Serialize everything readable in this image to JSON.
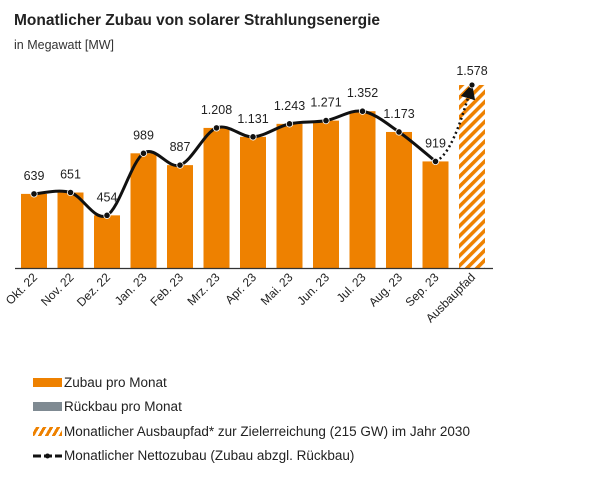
{
  "title": "Monatlicher Zubau von solarer Strahlungsenergie",
  "subtitle": "in Megawatt [MW]",
  "colors": {
    "zubau": "#EE8100",
    "rueckbau": "#7F8A92",
    "line": "#111111"
  },
  "chart_data": {
    "type": "bar",
    "title": "Monatlicher Zubau von solarer Strahlungsenergie",
    "ylabel": "in Megawatt [MW]",
    "categories": [
      "Okt. 22",
      "Nov. 22",
      "Dez. 22",
      "Jan. 23",
      "Feb. 23",
      "Mrz. 23",
      "Apr. 23",
      "Mai. 23",
      "Jun. 23",
      "Jul. 23",
      "Aug. 23",
      "Sep. 23",
      "Ausbaupfad"
    ],
    "series": [
      {
        "name": "Zubau pro Monat",
        "values": [
          639,
          651,
          454,
          989,
          887,
          1208,
          1131,
          1243,
          1271,
          1352,
          1173,
          919,
          null
        ]
      },
      {
        "name": "Monatlicher Ausbaupfad* zur Zielerreichung (215 GW) im Jahr 2030",
        "values": [
          null,
          null,
          null,
          null,
          null,
          null,
          null,
          null,
          null,
          null,
          null,
          null,
          1578
        ]
      },
      {
        "name": "Monatlicher Nettozubau (Zubau abzgl. Rückbau)",
        "type": "line",
        "values": [
          639,
          651,
          454,
          989,
          887,
          1208,
          1131,
          1243,
          1271,
          1352,
          1173,
          919,
          1578
        ]
      }
    ],
    "data_labels": [
      "639",
      "651",
      "454",
      "989",
      "887",
      "1.208",
      "1.131",
      "1.243",
      "1.271",
      "1.352",
      "1.173",
      "919",
      "1.578"
    ],
    "ylim": [
      0,
      1600
    ],
    "grid": false,
    "legend_position": "bottom"
  },
  "legend": [
    {
      "label": "Zubau pro Monat",
      "style": "solid-orange"
    },
    {
      "label": "Rückbau pro Monat",
      "style": "solid-gray"
    },
    {
      "label": "Monatlicher Ausbaupfad* zur Zielerreichung (215 GW) im Jahr 2030",
      "style": "hatched-orange"
    },
    {
      "label": "Monatlicher Nettozubau (Zubau abzgl. Rückbau)",
      "style": "line-dot"
    }
  ]
}
